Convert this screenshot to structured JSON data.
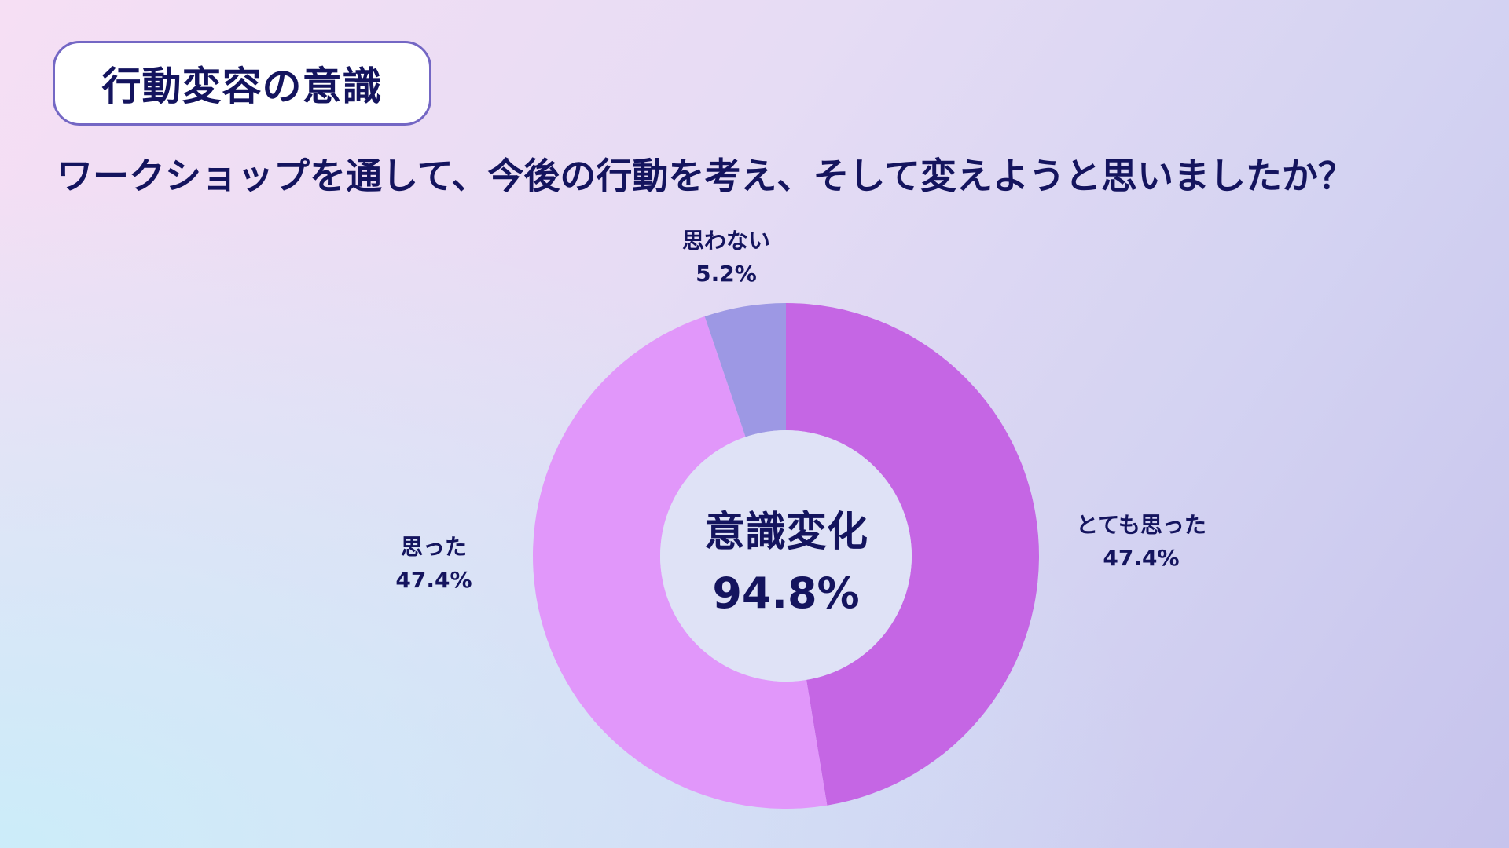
{
  "header": {
    "badge": "行動変容の意識",
    "question": "ワークショップを通して、今後の行動を考え、そして変えようと思いましたか？"
  },
  "chart_data": {
    "type": "pie",
    "variant": "donut",
    "slices": [
      {
        "label": "とても思った",
        "value_label": "47.4%",
        "value": 47.4,
        "color": "#c566e4"
      },
      {
        "label": "思った",
        "value_label": "47.4%",
        "value": 47.4,
        "color": "#e197fa"
      },
      {
        "label": "思わない",
        "value_label": "5.2%",
        "value": 5.2,
        "color": "#9d98e4"
      }
    ],
    "center": {
      "title": "意識変化",
      "value": "94.8%"
    },
    "start_angle": "12 o'clock",
    "direction": "clockwise",
    "legend": "none"
  }
}
